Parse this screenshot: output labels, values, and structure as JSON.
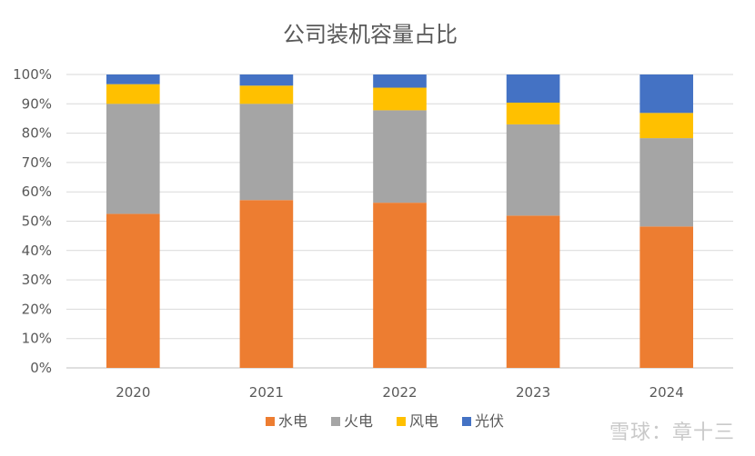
{
  "chart_data": {
    "type": "bar",
    "stacked": true,
    "normalized": true,
    "title": "公司装机容量占比",
    "categories": [
      "2020",
      "2021",
      "2022",
      "2023",
      "2024"
    ],
    "series": [
      {
        "name": "水电",
        "color": "#ED7D31",
        "values": [
          0.525,
          0.572,
          0.563,
          0.519,
          0.482
        ]
      },
      {
        "name": "火电",
        "color": "#A5A5A5",
        "values": [
          0.375,
          0.328,
          0.315,
          0.311,
          0.301
        ]
      },
      {
        "name": "风电",
        "color": "#FFC000",
        "values": [
          0.067,
          0.062,
          0.077,
          0.074,
          0.086
        ]
      },
      {
        "name": "光伏",
        "color": "#4472C4",
        "values": [
          0.033,
          0.038,
          0.045,
          0.096,
          0.131
        ]
      }
    ],
    "y_ticks": [
      "0%",
      "10%",
      "20%",
      "30%",
      "40%",
      "50%",
      "60%",
      "70%",
      "80%",
      "90%",
      "100%"
    ],
    "ylim": [
      0,
      1
    ],
    "grid": true,
    "legend_position": "bottom"
  },
  "watermark": "雪球：章十三"
}
